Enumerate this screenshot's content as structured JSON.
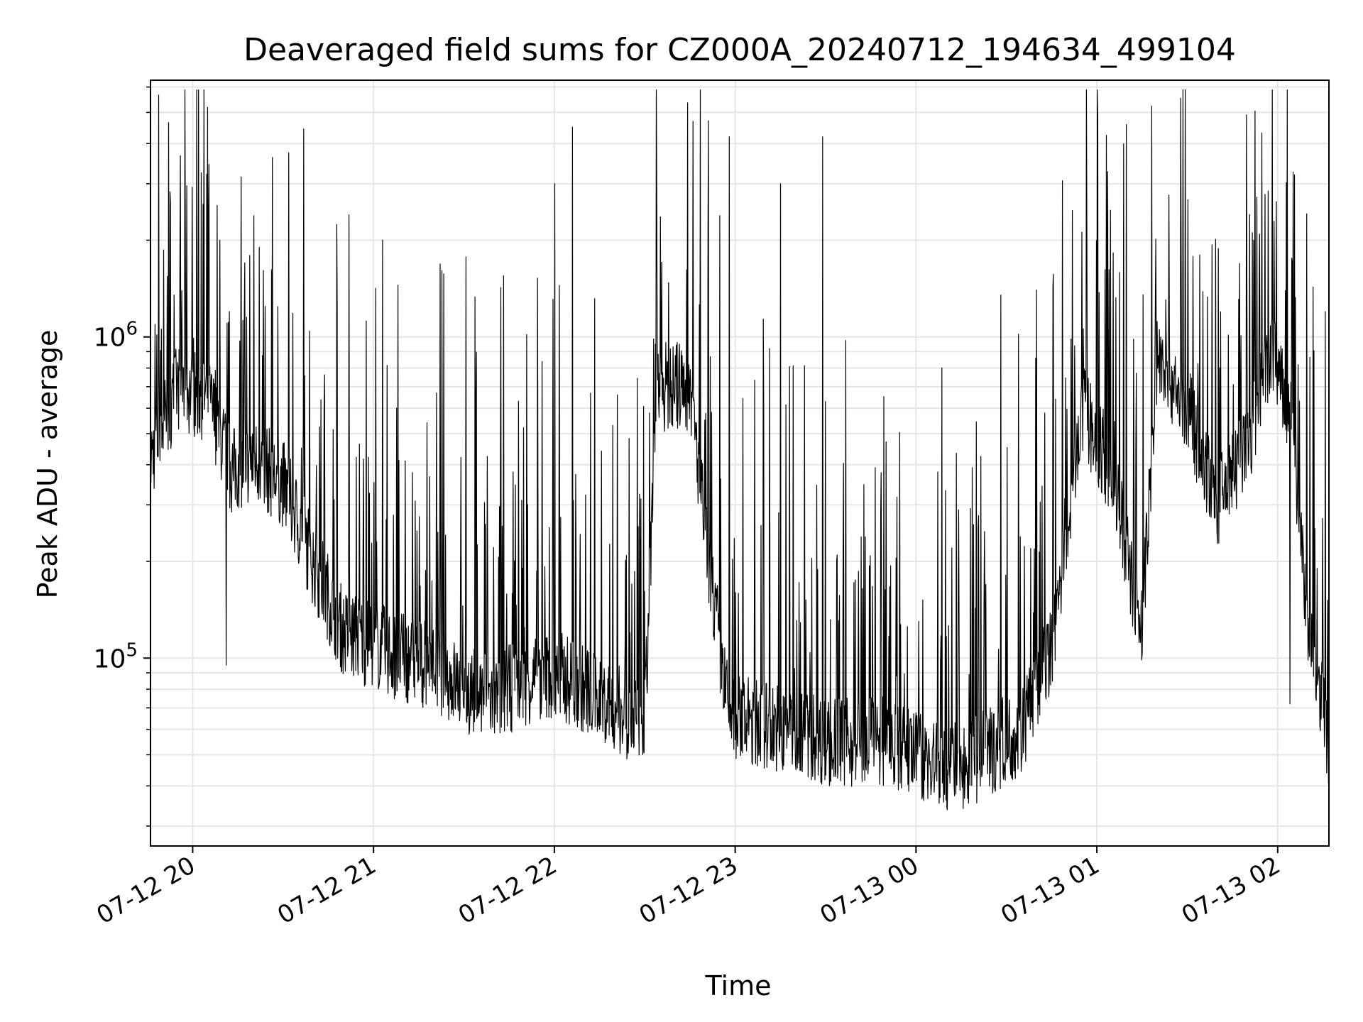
{
  "chart_data": {
    "type": "line",
    "title": "Deaveraged field sums for CZ000A_20240712_194634_499104",
    "xlabel": "Time",
    "ylabel": "Peak ADU - average",
    "yscale": "log",
    "ylim": [
      26000,
      6300000
    ],
    "xlim": [
      "2024-07-12 19:46",
      "2024-07-13 02:17"
    ],
    "x_ticks": [
      {
        "t": "2024-07-12 20:00",
        "label": "07-12 20"
      },
      {
        "t": "2024-07-12 21:00",
        "label": "07-12 21"
      },
      {
        "t": "2024-07-12 22:00",
        "label": "07-12 22"
      },
      {
        "t": "2024-07-12 23:00",
        "label": "07-12 23"
      },
      {
        "t": "2024-07-13 00:00",
        "label": "07-13 00"
      },
      {
        "t": "2024-07-13 01:00",
        "label": "07-13 01"
      },
      {
        "t": "2024-07-13 02:00",
        "label": "07-13 02"
      }
    ],
    "y_ticks": [
      {
        "value": 100000,
        "base": "10",
        "exp": "5"
      },
      {
        "value": 1000000,
        "base": "10",
        "exp": "6"
      }
    ],
    "grid": true,
    "line_color": "#000000",
    "grid_color": "#e6e6e6",
    "series": [
      {
        "x": [
          "2024-07-12 19:46",
          "2024-07-12 19:55",
          "2024-07-12 20:05",
          "2024-07-12 20:13",
          "2024-07-12 20:20",
          "2024-07-12 20:30",
          "2024-07-12 20:40",
          "2024-07-12 20:50",
          "2024-07-12 21:00",
          "2024-07-12 21:10",
          "2024-07-12 21:20",
          "2024-07-12 21:30",
          "2024-07-12 21:40",
          "2024-07-12 21:50",
          "2024-07-12 22:00",
          "2024-07-12 22:10",
          "2024-07-12 22:20",
          "2024-07-12 22:30",
          "2024-07-12 22:34",
          "2024-07-12 22:45",
          "2024-07-12 22:50",
          "2024-07-12 22:58",
          "2024-07-12 23:10",
          "2024-07-12 23:20",
          "2024-07-12 23:30",
          "2024-07-12 23:40",
          "2024-07-12 23:50",
          "2024-07-13 00:00",
          "2024-07-13 00:10",
          "2024-07-13 00:20",
          "2024-07-13 00:35",
          "2024-07-13 00:45",
          "2024-07-13 00:55",
          "2024-07-13 01:05",
          "2024-07-13 01:15",
          "2024-07-13 01:20",
          "2024-07-13 01:30",
          "2024-07-13 01:40",
          "2024-07-13 01:50",
          "2024-07-13 01:58",
          "2024-07-13 02:05",
          "2024-07-13 02:10",
          "2024-07-13 02:17"
        ],
        "y": [
          420000,
          700000,
          650000,
          380000,
          420000,
          350000,
          200000,
          120000,
          110000,
          100000,
          95000,
          80000,
          75000,
          85000,
          90000,
          80000,
          70000,
          62000,
          700000,
          700000,
          250000,
          65000,
          62000,
          60000,
          55000,
          55000,
          55000,
          50000,
          45000,
          48000,
          60000,
          110000,
          600000,
          380000,
          120000,
          900000,
          600000,
          300000,
          450000,
          900000,
          500000,
          130000,
          55000
        ],
        "spikes": [
          {
            "x": "2024-07-12 20:09",
            "y": 2000000
          },
          {
            "x": "2024-07-12 20:11",
            "y": 95000
          },
          {
            "x": "2024-07-12 20:22",
            "y": 1900000
          },
          {
            "x": "2024-07-12 21:08",
            "y": 1450000
          },
          {
            "x": "2024-07-12 21:43",
            "y": 1550000
          },
          {
            "x": "2024-07-12 22:00",
            "y": 3000000
          },
          {
            "x": "2024-07-12 22:06",
            "y": 4500000
          },
          {
            "x": "2024-07-12 22:58",
            "y": 4200000
          },
          {
            "x": "2024-07-12 23:15",
            "y": 3000000
          },
          {
            "x": "2024-07-12 23:29",
            "y": 4200000
          },
          {
            "x": "2024-07-13 00:28",
            "y": 1350000
          },
          {
            "x": "2024-07-13 00:40",
            "y": 1400000
          },
          {
            "x": "2024-07-13 01:34",
            "y": 1800000
          },
          {
            "x": "2024-07-13 01:52",
            "y": 2000000
          },
          {
            "x": "2024-07-13 02:04",
            "y": 72000
          }
        ]
      }
    ]
  }
}
